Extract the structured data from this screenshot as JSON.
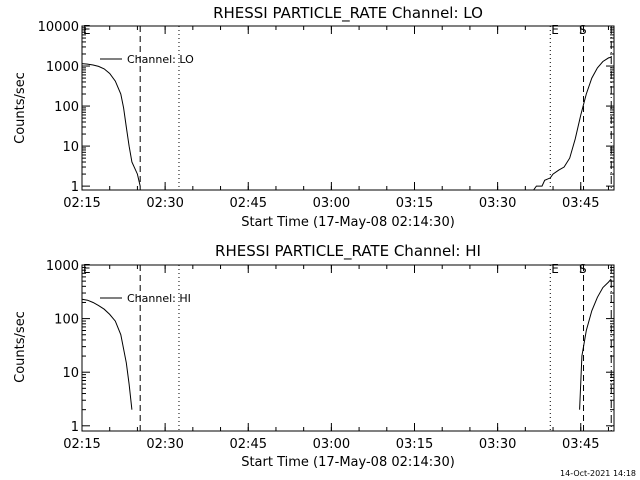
{
  "timestamp": "14-Oct-2021 14:18",
  "chart_data": [
    {
      "type": "line",
      "title": "RHESSI PARTICLE_RATE Channel: LO",
      "xlabel": "Start Time (17-May-08 02:14:30)",
      "ylabel": "Counts/sec",
      "yscale": "log",
      "xlim_min": [
        15,
        111
      ],
      "ylim": [
        0.8,
        10000
      ],
      "xticks": [
        "02:15",
        "02:30",
        "02:45",
        "03:00",
        "03:15",
        "03:30",
        "03:45"
      ],
      "yticks": [
        "1",
        "10",
        "100",
        "1000",
        "10000"
      ],
      "legend": "Channel: LO",
      "markers": [
        {
          "label": "E",
          "time_min": 15
        },
        {
          "label": "E",
          "time_min": 99.5
        },
        {
          "label": "S",
          "time_min": 104.5
        }
      ],
      "vlines": [
        {
          "time_min": 25.5,
          "style": "dashed"
        },
        {
          "time_min": 32.5,
          "style": "dotted"
        },
        {
          "time_min": 99.5,
          "style": "dotted"
        },
        {
          "time_min": 105.5,
          "style": "dashed"
        },
        {
          "time_min": 110.5,
          "style": "dashdot"
        }
      ],
      "series": [
        {
          "name": "Channel: LO",
          "segments": [
            [
              [
                15,
                1150
              ],
              [
                16,
                1120
              ],
              [
                17,
                1060
              ],
              [
                18,
                980
              ],
              [
                19,
                850
              ],
              [
                20,
                650
              ],
              [
                21,
                420
              ],
              [
                22,
                200
              ],
              [
                22.5,
                90
              ],
              [
                23,
                30
              ],
              [
                23.5,
                10
              ],
              [
                24,
                4
              ],
              [
                25,
                2
              ],
              [
                25.5,
                1
              ]
            ],
            [
              [
                96.5,
                0.8
              ],
              [
                97,
                1
              ],
              [
                98,
                1
              ],
              [
                98.5,
                1.4
              ],
              [
                99.5,
                1.6
              ],
              [
                100,
                2
              ],
              [
                101,
                2.5
              ],
              [
                102,
                3
              ],
              [
                103,
                5
              ],
              [
                104,
                15
              ],
              [
                105,
                60
              ],
              [
                106,
                200
              ],
              [
                107,
                500
              ],
              [
                108,
                900
              ],
              [
                109,
                1300
              ],
              [
                110,
                1600
              ],
              [
                110.5,
                1650
              ]
            ]
          ]
        }
      ]
    },
    {
      "type": "line",
      "title": "RHESSI PARTICLE_RATE Channel: HI",
      "xlabel": "Start Time (17-May-08 02:14:30)",
      "ylabel": "Counts/sec",
      "yscale": "log",
      "xlim_min": [
        15,
        111
      ],
      "ylim": [
        0.8,
        1000
      ],
      "xticks": [
        "02:15",
        "02:30",
        "02:45",
        "03:00",
        "03:15",
        "03:30",
        "03:45"
      ],
      "yticks": [
        "1",
        "10",
        "100",
        "1000"
      ],
      "legend": "Channel: HI",
      "markers": [
        {
          "label": "E",
          "time_min": 15
        },
        {
          "label": "E",
          "time_min": 99.5
        },
        {
          "label": "S",
          "time_min": 104.5
        }
      ],
      "vlines": [
        {
          "time_min": 25.5,
          "style": "dashed"
        },
        {
          "time_min": 32.5,
          "style": "dotted"
        },
        {
          "time_min": 99.5,
          "style": "dotted"
        },
        {
          "time_min": 105.5,
          "style": "dashed"
        },
        {
          "time_min": 110.5,
          "style": "dashdot"
        }
      ],
      "series": [
        {
          "name": "Channel: HI",
          "segments": [
            [
              [
                15,
                230
              ],
              [
                16,
                220
              ],
              [
                17,
                200
              ],
              [
                18,
                175
              ],
              [
                19,
                150
              ],
              [
                20,
                120
              ],
              [
                21,
                90
              ],
              [
                22,
                50
              ],
              [
                23,
                15
              ],
              [
                23.5,
                6
              ],
              [
                24,
                2
              ]
            ],
            [
              [
                104.8,
                2
              ],
              [
                105.2,
                20
              ],
              [
                106,
                60
              ],
              [
                107,
                140
              ],
              [
                108,
                250
              ],
              [
                109,
                380
              ],
              [
                110,
                480
              ],
              [
                110.5,
                550
              ]
            ]
          ]
        }
      ]
    }
  ]
}
